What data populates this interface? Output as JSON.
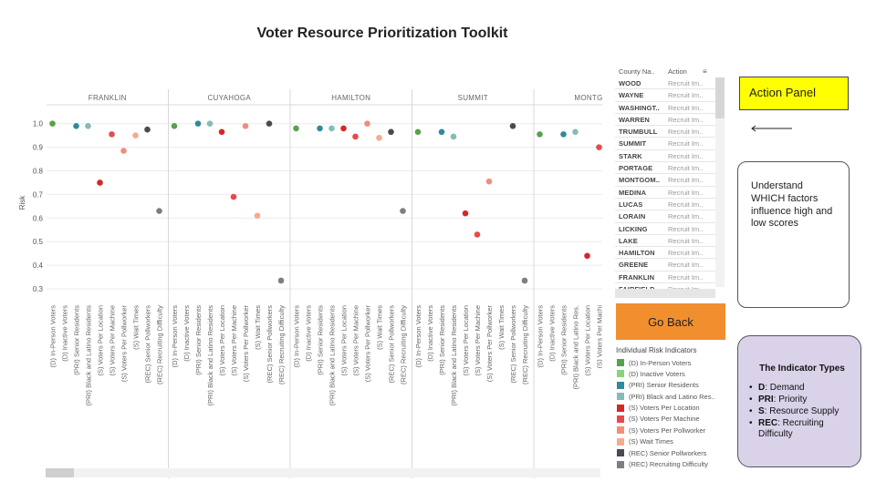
{
  "title": "Voter Resource Prioritization Toolkit",
  "chart_data": {
    "type": "scatter",
    "ylabel": "Risk",
    "yticks": [
      "0.3",
      "0.4",
      "0.5",
      "0.6",
      "0.7",
      "0.8",
      "0.9",
      "1.0"
    ],
    "ylim": [
      0.25,
      1.08
    ],
    "grid": true,
    "indicators": [
      "(D) In-Person Voters",
      "(D) Inactive Voters",
      "(PRI) Senior Residents",
      "(PRI) Black and Latino Residents",
      "(S) Voters Per Location",
      "(S) Voters Per Machine",
      "(S) Voters Per Pollworker",
      "(S) Wait Times",
      "(REC) Senior Pollworkers",
      "(REC) Recruiting Difficulty"
    ],
    "last_panel_visible_ticks": [
      "(D) In-Person Voters",
      "(D) Inactive Voters",
      "(PRI) Senior Residents",
      "(PRI) Black and Latino Res.",
      "(S) Voters Per Location",
      "(S) Voters Per Machi"
    ],
    "colors": [
      "#59a14f",
      "#8cd17d",
      "#2e8b9a",
      "#86bcb6",
      "#d62728",
      "#e8494a",
      "#f28e77",
      "#f6aa8e",
      "#4a4a50",
      "#7b7f85"
    ],
    "panels": [
      {
        "county": "FRANKLIN",
        "values": [
          1.0,
          null,
          0.99,
          0.99,
          0.75,
          0.955,
          0.885,
          0.95,
          0.975,
          0.63
        ]
      },
      {
        "county": "CUYAHOGA",
        "values": [
          0.99,
          null,
          1.0,
          1.0,
          0.965,
          0.69,
          0.99,
          0.61,
          1.0,
          0.335
        ]
      },
      {
        "county": "HAMILTON",
        "values": [
          0.98,
          null,
          0.98,
          0.98,
          0.98,
          0.945,
          1.0,
          0.94,
          0.965,
          0.63
        ]
      },
      {
        "county": "SUMMIT",
        "values": [
          0.965,
          null,
          0.965,
          0.945,
          0.62,
          0.53,
          0.755,
          null,
          0.99,
          0.335
        ]
      },
      {
        "county": "MONTGOM",
        "values": [
          0.955,
          null,
          0.955,
          0.965,
          0.44,
          0.9,
          null,
          null,
          null,
          null
        ]
      }
    ]
  },
  "table": {
    "col_county": "County Na..",
    "col_action": "Action",
    "menu_icon": "≡",
    "rows": [
      {
        "county": "WOOD",
        "action": "Recruit Im.."
      },
      {
        "county": "WAYNE",
        "action": "Recruit Im.."
      },
      {
        "county": "WASHINGT..",
        "action": "Recruit Im.."
      },
      {
        "county": "WARREN",
        "action": "Recruit Im.."
      },
      {
        "county": "TRUMBULL",
        "action": "Recruit Im.."
      },
      {
        "county": "SUMMIT",
        "action": "Recruit Im.."
      },
      {
        "county": "STARK",
        "action": "Recruit Im.."
      },
      {
        "county": "PORTAGE",
        "action": "Recruit Im.."
      },
      {
        "county": "MONTGOM..",
        "action": "Recruit Im.."
      },
      {
        "county": "MEDINA",
        "action": "Recruit Im.."
      },
      {
        "county": "LUCAS",
        "action": "Recruit Im.."
      },
      {
        "county": "LORAIN",
        "action": "Recruit Im.."
      },
      {
        "county": "LICKING",
        "action": "Recruit Im.."
      },
      {
        "county": "LAKE",
        "action": "Recruit Im.."
      },
      {
        "county": "HAMILTON",
        "action": "Recruit Im.."
      },
      {
        "county": "GREENE",
        "action": "Recruit Im.."
      },
      {
        "county": "FRANKLIN",
        "action": "Recruit Im.."
      },
      {
        "county": "FAIRFIELD",
        "action": "Recruit Im.."
      }
    ]
  },
  "go_back_label": "Go Back",
  "legend": {
    "title": "Individual Risk Indicators",
    "items": [
      {
        "label": "(D) In-Person Voters",
        "color": "#59a14f"
      },
      {
        "label": "(D) Inactive Voters",
        "color": "#8cd17d"
      },
      {
        "label": "(PRI) Senior Residents",
        "color": "#2e8b9a"
      },
      {
        "label": "(PRI) Black and Latino Res..",
        "color": "#86bcb6"
      },
      {
        "label": "(S) Voters Per Location",
        "color": "#d62728"
      },
      {
        "label": "(S) Voters Per Machine",
        "color": "#e8494a"
      },
      {
        "label": "(S) Voters Per Pollworker",
        "color": "#f28e77"
      },
      {
        "label": "(S) Wait Times",
        "color": "#f6aa8e"
      },
      {
        "label": "(REC) Senior Pollworkers",
        "color": "#4a4a50"
      },
      {
        "label": "(REC) Recruiting Difficulty",
        "color": "#7b7f85"
      }
    ]
  },
  "action_panel_label": "Action Panel",
  "understand_text": "Understand WHICH factors influence high and low scores",
  "indicator_box": {
    "title": "The Indicator Types",
    "items": [
      {
        "key": "D",
        "desc": ": Demand"
      },
      {
        "key": "PRI",
        "desc": ": Priority"
      },
      {
        "key": "S",
        "desc": ": Resource Supply"
      },
      {
        "key": "REC",
        "desc": ": Recruiting Difficulty"
      }
    ]
  }
}
